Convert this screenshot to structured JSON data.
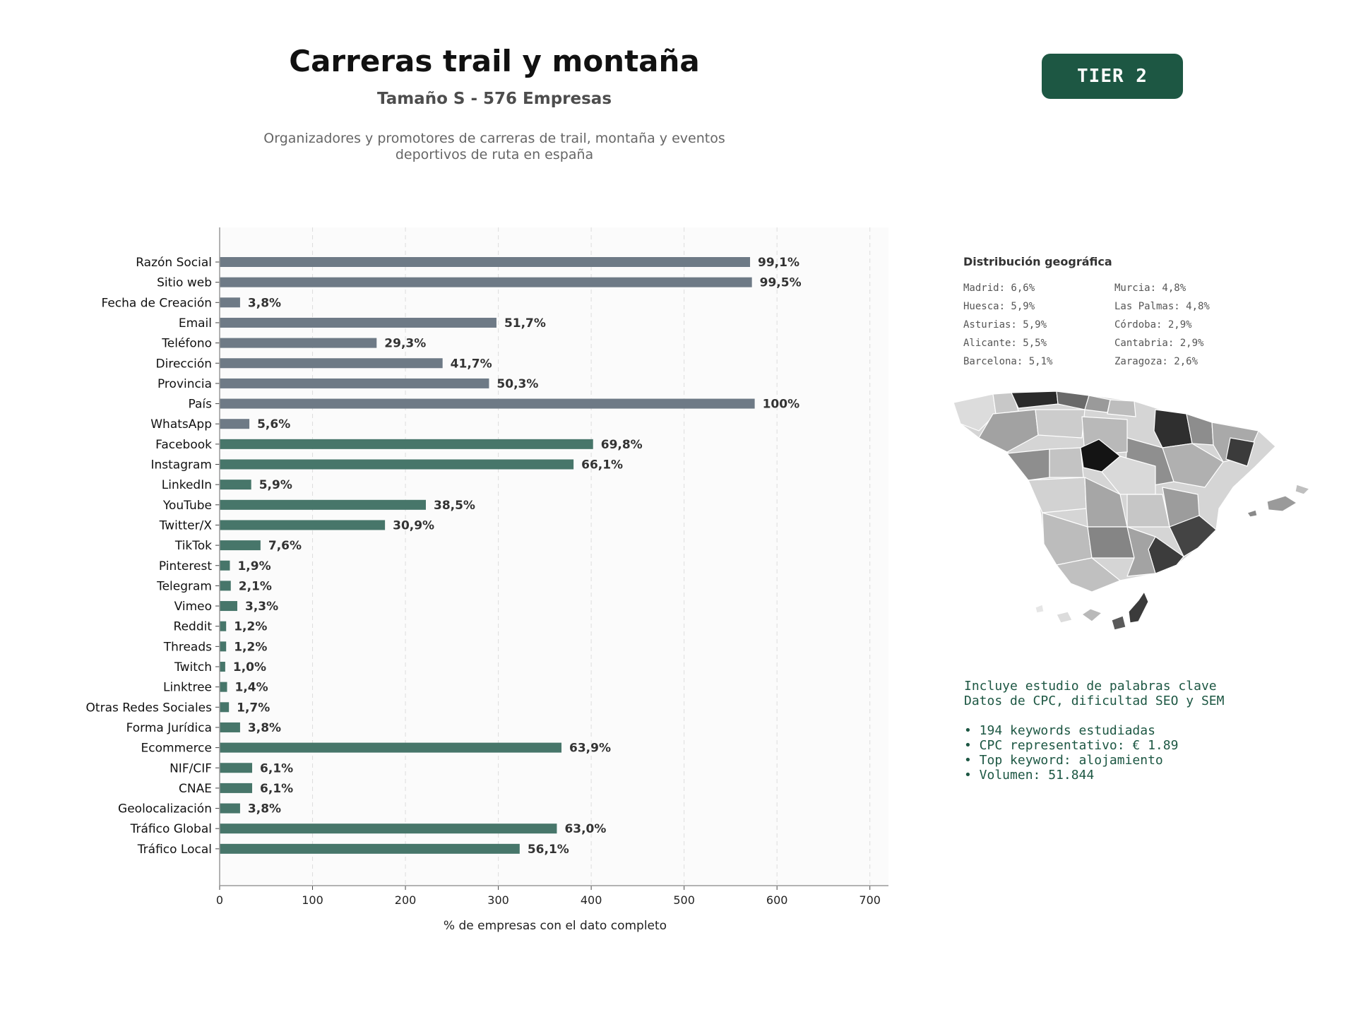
{
  "header": {
    "title": "Carreras trail y montaña",
    "subtitle": "Tamaño S - 576 Empresas",
    "description_line1": "Organizadores y promotores de carreras de trail, montaña y eventos",
    "description_line2": "deportivos de ruta en españa",
    "tier_label": "TIER 2"
  },
  "colors": {
    "tier_bg": "#1d5743",
    "tier_text": "#ffffff",
    "bar_gray": "#6e7a86",
    "bar_green": "#47766a",
    "keyword_text": "#1d5743",
    "plot_bg": "#fbfbfb"
  },
  "chart_data": {
    "type": "bar",
    "orientation": "horizontal",
    "title": "",
    "xlabel": "% de empresas con el dato completo",
    "ylabel": "",
    "xlim": [
      0,
      720
    ],
    "xticks": [
      0,
      100,
      200,
      300,
      400,
      500,
      600,
      700
    ],
    "grid": "vertical dashed",
    "total_companies": 576,
    "categories": [
      "Razón Social",
      "Sitio web",
      "Fecha de Creación",
      "Email",
      "Teléfono",
      "Dirección",
      "Provincia",
      "País",
      "WhatsApp",
      "Facebook",
      "Instagram",
      "LinkedIn",
      "YouTube",
      "Twitter/X",
      "TikTok",
      "Pinterest",
      "Telegram",
      "Vimeo",
      "Reddit",
      "Threads",
      "Twitch",
      "Linktree",
      "Otras Redes Sociales",
      "Forma Jurídica",
      "Ecommerce",
      "NIF/CIF",
      "CNAE",
      "Geolocalización",
      "Tráfico Global",
      "Tráfico Local"
    ],
    "values": [
      571,
      573,
      22,
      298,
      169,
      240,
      290,
      576,
      32,
      402,
      381,
      34,
      222,
      178,
      44,
      11,
      12,
      19,
      7,
      7,
      6,
      8,
      10,
      22,
      368,
      35,
      35,
      22,
      363,
      323
    ],
    "labels": [
      "99,1%",
      "99,5%",
      "3,8%",
      "51,7%",
      "29,3%",
      "41,7%",
      "50,3%",
      "100%",
      "5,6%",
      "69,8%",
      "66,1%",
      "5,9%",
      "38,5%",
      "30,9%",
      "7,6%",
      "1,9%",
      "2,1%",
      "3,3%",
      "1,2%",
      "1,2%",
      "1,0%",
      "1,4%",
      "1,7%",
      "3,8%",
      "63,9%",
      "6,1%",
      "6,1%",
      "3,8%",
      "63,0%",
      "56,1%"
    ],
    "bar_groups": [
      "gray",
      "gray",
      "gray",
      "gray",
      "gray",
      "gray",
      "gray",
      "gray",
      "gray",
      "green",
      "green",
      "green",
      "green",
      "green",
      "green",
      "green",
      "green",
      "green",
      "green",
      "green",
      "green",
      "green",
      "green",
      "green",
      "green",
      "green",
      "green",
      "green",
      "green",
      "green"
    ]
  },
  "geo": {
    "title": "Distribución geográfica",
    "items": [
      "Madrid: 6,6%",
      "Murcia: 4,8%",
      "Huesca: 5,9%",
      "Las Palmas: 4,8%",
      "Asturias: 5,9%",
      "Córdoba: 2,9%",
      "Alicante: 5,5%",
      "Cantabria: 2,9%",
      "Barcelona: 5,1%",
      "Zaragoza: 2,6%"
    ]
  },
  "map": {
    "label": "Mapa de provincias de España"
  },
  "keywords": {
    "line1": "Incluye estudio de palabras clave",
    "line2": "Datos de CPC, dificultad SEO y SEM",
    "bullets": [
      "• 194 keywords estudiadas",
      "• CPC representativo: € 1.89",
      "• Top keyword: alojamiento",
      "• Volumen: 51.844"
    ]
  }
}
